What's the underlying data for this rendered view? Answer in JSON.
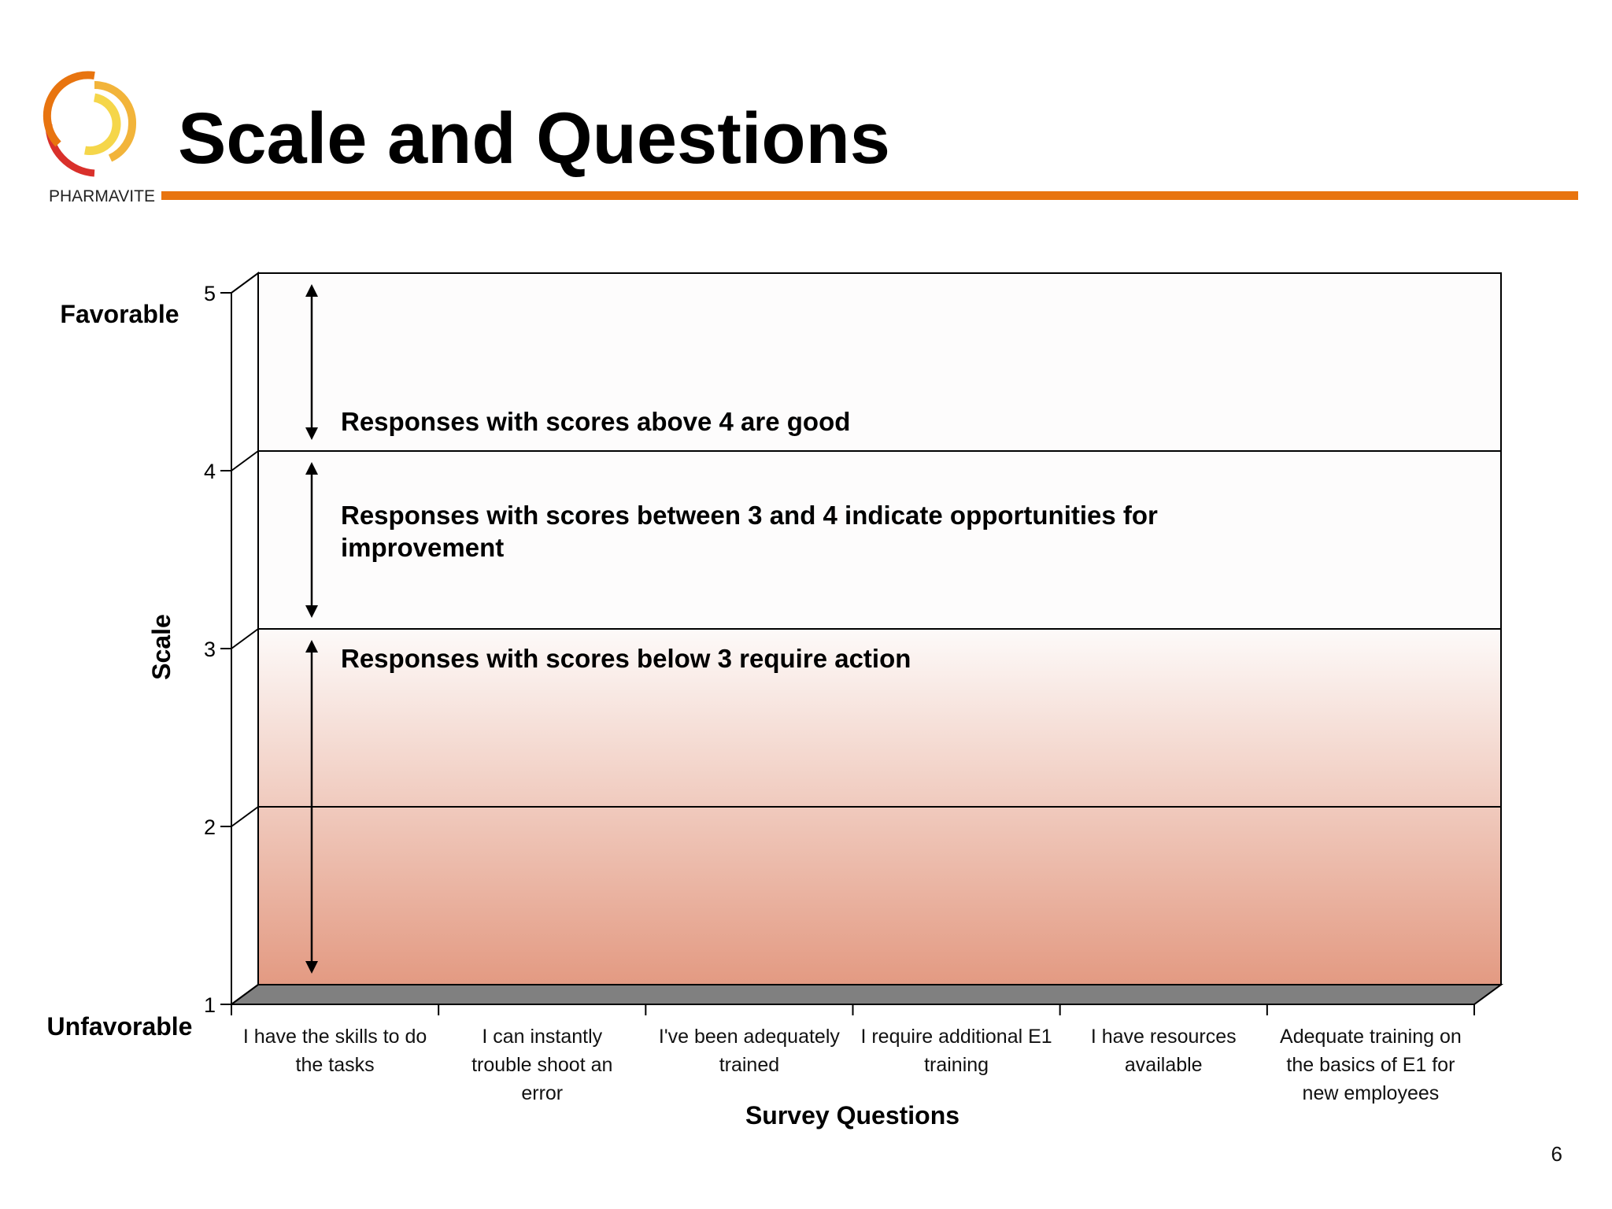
{
  "title": "Scale and Questions",
  "logo": {
    "text": "PHARMAVITE",
    "colors": [
      "#D9302B",
      "#E8740F",
      "#F2B43A",
      "#F5D64A"
    ]
  },
  "page_number": "6",
  "colors": {
    "accent": "#E8740F",
    "band_low": "#E39A82",
    "floor": "#808080"
  },
  "chart_data": {
    "type": "bar",
    "categories": [
      "I have the skills to do the tasks",
      "I can instantly trouble shoot an error",
      "I've been adequately trained",
      "I require additional E1 training",
      "I have resources available",
      "Adequate training on the basics of E1 for new  employees"
    ],
    "category_lines": [
      [
        "I have the skills to do",
        "the tasks"
      ],
      [
        "I can instantly",
        "trouble shoot an",
        "error"
      ],
      [
        "I've been adequately",
        "trained"
      ],
      [
        "I require additional E1",
        "training"
      ],
      [
        "I have resources",
        "available"
      ],
      [
        "Adequate training on",
        "the basics of E1 for",
        "new  employees"
      ]
    ],
    "xlabel": "Survey Questions",
    "ylabel": "Scale",
    "ylim": [
      1,
      5
    ],
    "yticks": [
      "1",
      "2",
      "3",
      "4",
      "5"
    ],
    "ytick_values": [
      1,
      2,
      3,
      4,
      5
    ],
    "y_end_labels": {
      "top": "Favorable",
      "bottom": "Unfavorable"
    },
    "gridlines": [
      2,
      3,
      4
    ],
    "series": [],
    "annotations": [
      {
        "from": 4,
        "to": 5,
        "lines": [
          "Responses with scores above 4 are good"
        ]
      },
      {
        "from": 3,
        "to": 4,
        "lines": [
          "Responses with scores between 3 and 4 indicate opportunities for",
          "improvement"
        ]
      },
      {
        "from": 1,
        "to": 3,
        "lines": [
          "Responses with scores below 3 require action"
        ]
      }
    ]
  }
}
